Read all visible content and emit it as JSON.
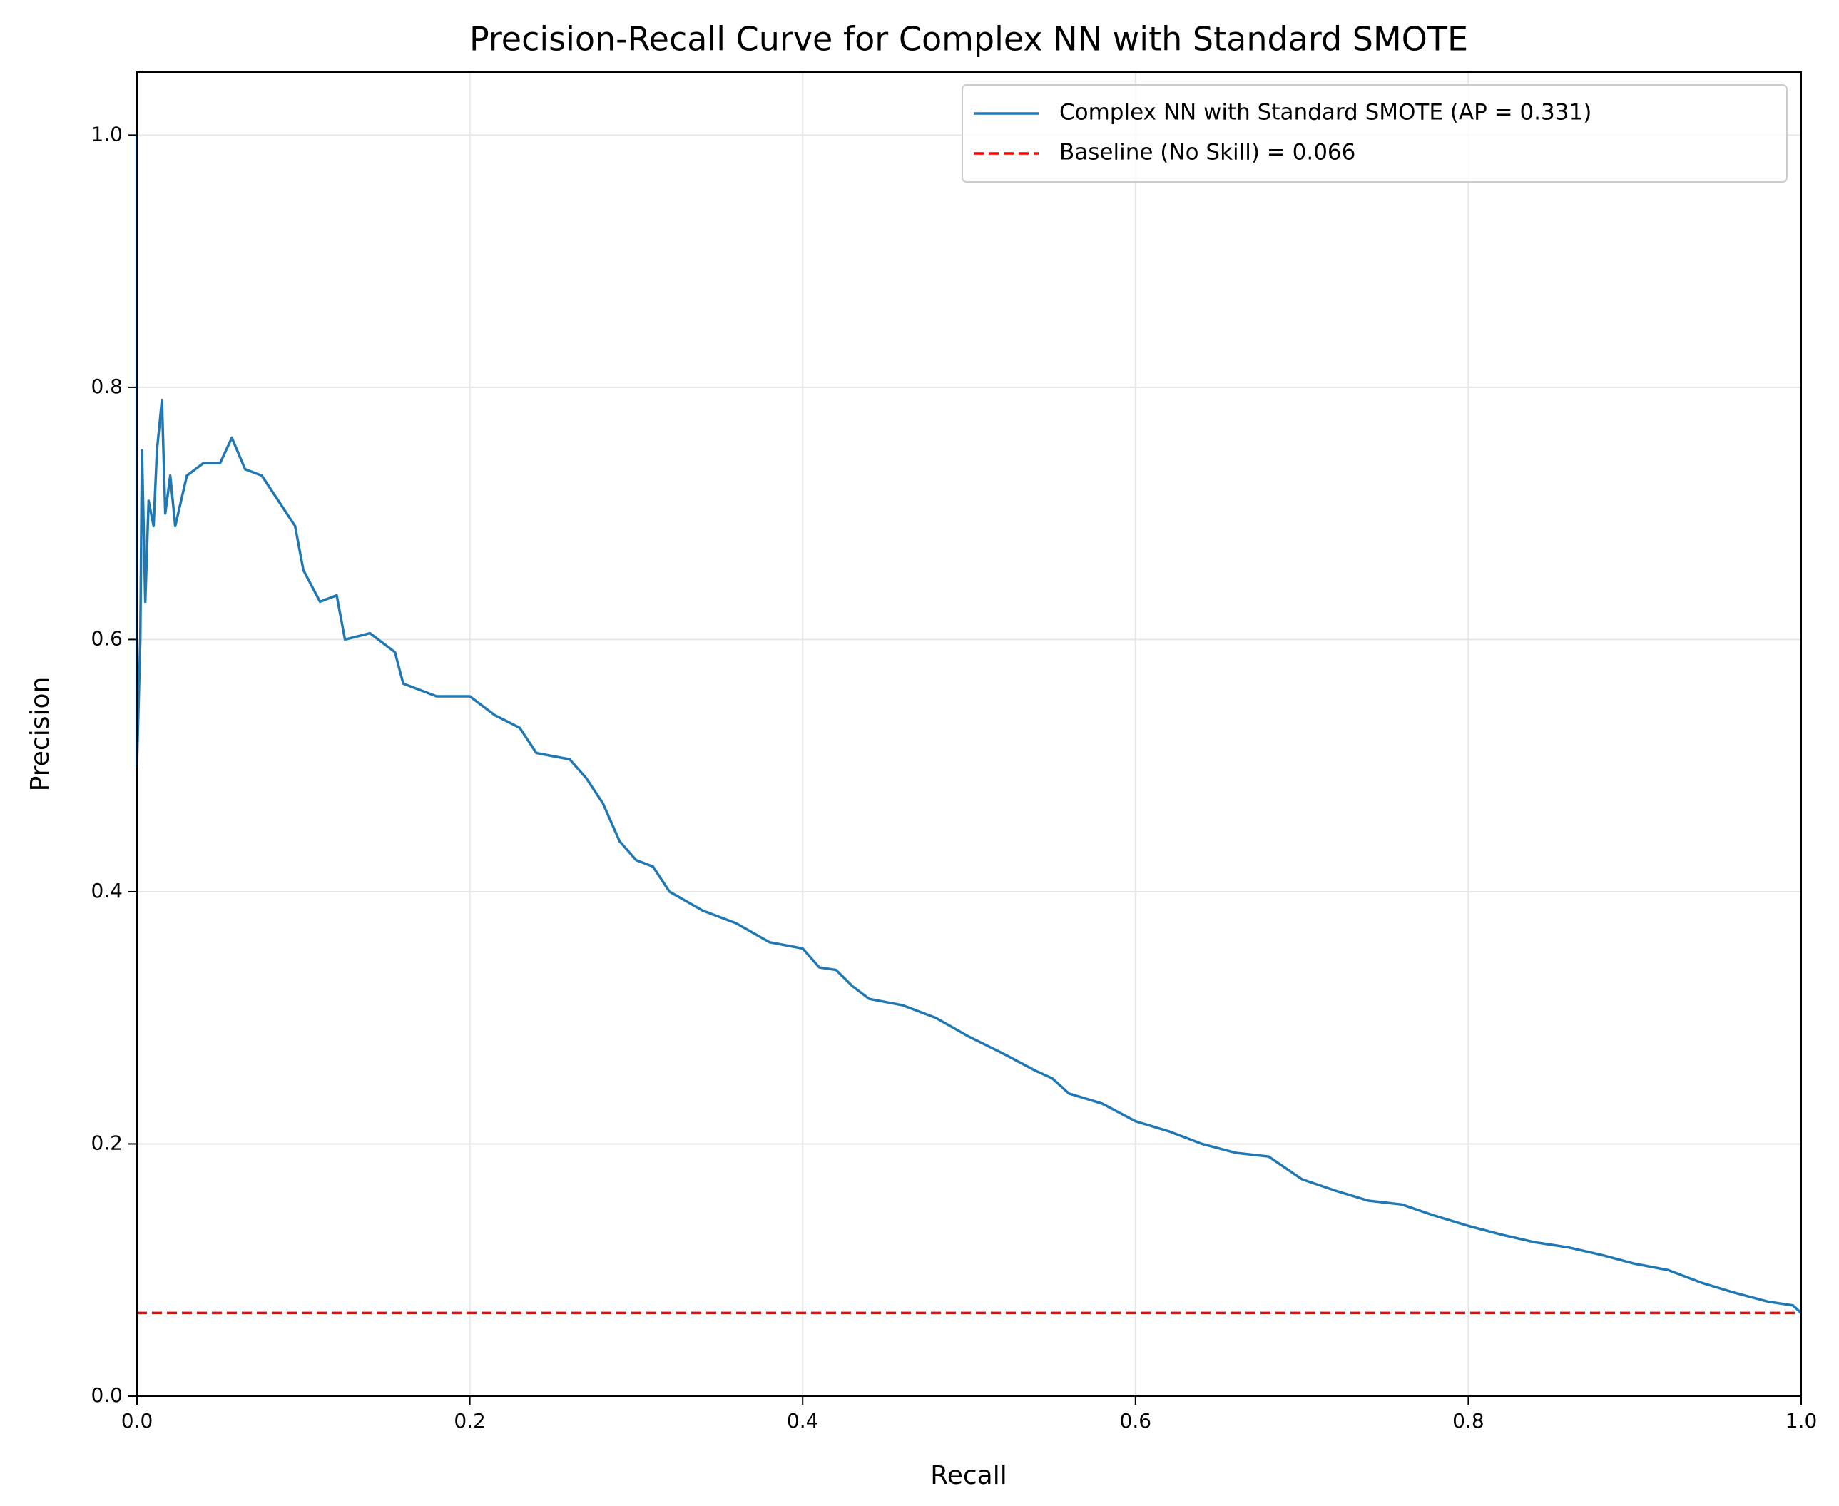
{
  "chart_data": {
    "type": "line",
    "title": "Precision-Recall Curve for Complex NN with Standard SMOTE",
    "xlabel": "Recall",
    "ylabel": "Precision",
    "xlim": [
      0,
      1
    ],
    "ylim": [
      0,
      1.05
    ],
    "xticks": [
      {
        "value": 0,
        "label": "0.0"
      },
      0.2,
      0.4,
      0.6,
      0.8,
      {
        "value": 1,
        "label": "1.0"
      }
    ],
    "yticks": [
      {
        "value": 0,
        "label": "0.0"
      },
      0.2,
      0.4,
      0.6,
      0.8,
      {
        "value": 1,
        "label": "1.0"
      }
    ],
    "grid": true,
    "legend": "upper right",
    "series": [
      {
        "name": "Complex NN with Standard SMOTE (AP = 0.331)",
        "color": "#1f77b4",
        "dashed": false,
        "x": [
          0,
          0,
          0.002,
          0.003,
          0.005,
          0.007,
          0.01,
          0.012,
          0.015,
          0.017,
          0.02,
          0.023,
          0.03,
          0.04,
          0.05,
          0.057,
          0.065,
          0.075,
          0.085,
          0.095,
          0.1,
          0.11,
          0.12,
          0.125,
          0.14,
          0.155,
          0.16,
          0.18,
          0.2,
          0.215,
          0.23,
          0.24,
          0.26,
          0.27,
          0.28,
          0.29,
          0.3,
          0.31,
          0.32,
          0.34,
          0.36,
          0.38,
          0.4,
          0.41,
          0.42,
          0.43,
          0.44,
          0.46,
          0.48,
          0.5,
          0.52,
          0.54,
          0.55,
          0.56,
          0.58,
          0.6,
          0.62,
          0.64,
          0.66,
          0.68,
          0.7,
          0.72,
          0.74,
          0.76,
          0.78,
          0.8,
          0.82,
          0.84,
          0.86,
          0.88,
          0.9,
          0.92,
          0.94,
          0.96,
          0.98,
          0.995,
          1
        ],
        "values": [
          1,
          0.5,
          0.6,
          0.75,
          0.63,
          0.71,
          0.69,
          0.75,
          0.79,
          0.7,
          0.73,
          0.69,
          0.73,
          0.74,
          0.74,
          0.76,
          0.735,
          0.73,
          0.71,
          0.69,
          0.655,
          0.63,
          0.635,
          0.6,
          0.605,
          0.59,
          0.565,
          0.555,
          0.555,
          0.54,
          0.53,
          0.51,
          0.505,
          0.49,
          0.47,
          0.44,
          0.425,
          0.42,
          0.4,
          0.385,
          0.375,
          0.36,
          0.355,
          0.34,
          0.338,
          0.325,
          0.315,
          0.31,
          0.3,
          0.285,
          0.272,
          0.258,
          0.252,
          0.24,
          0.232,
          0.218,
          0.21,
          0.2,
          0.193,
          0.19,
          0.172,
          0.163,
          0.155,
          0.152,
          0.143,
          0.135,
          0.128,
          0.122,
          0.118,
          0.112,
          0.105,
          0.1,
          0.09,
          0.082,
          0.075,
          0.072,
          0.066
        ]
      },
      {
        "name": "Baseline (No Skill) = 0.066",
        "color": "#ff0000",
        "dashed": true,
        "x": [
          0,
          1
        ],
        "values": [
          0.066,
          0.066
        ]
      }
    ]
  }
}
